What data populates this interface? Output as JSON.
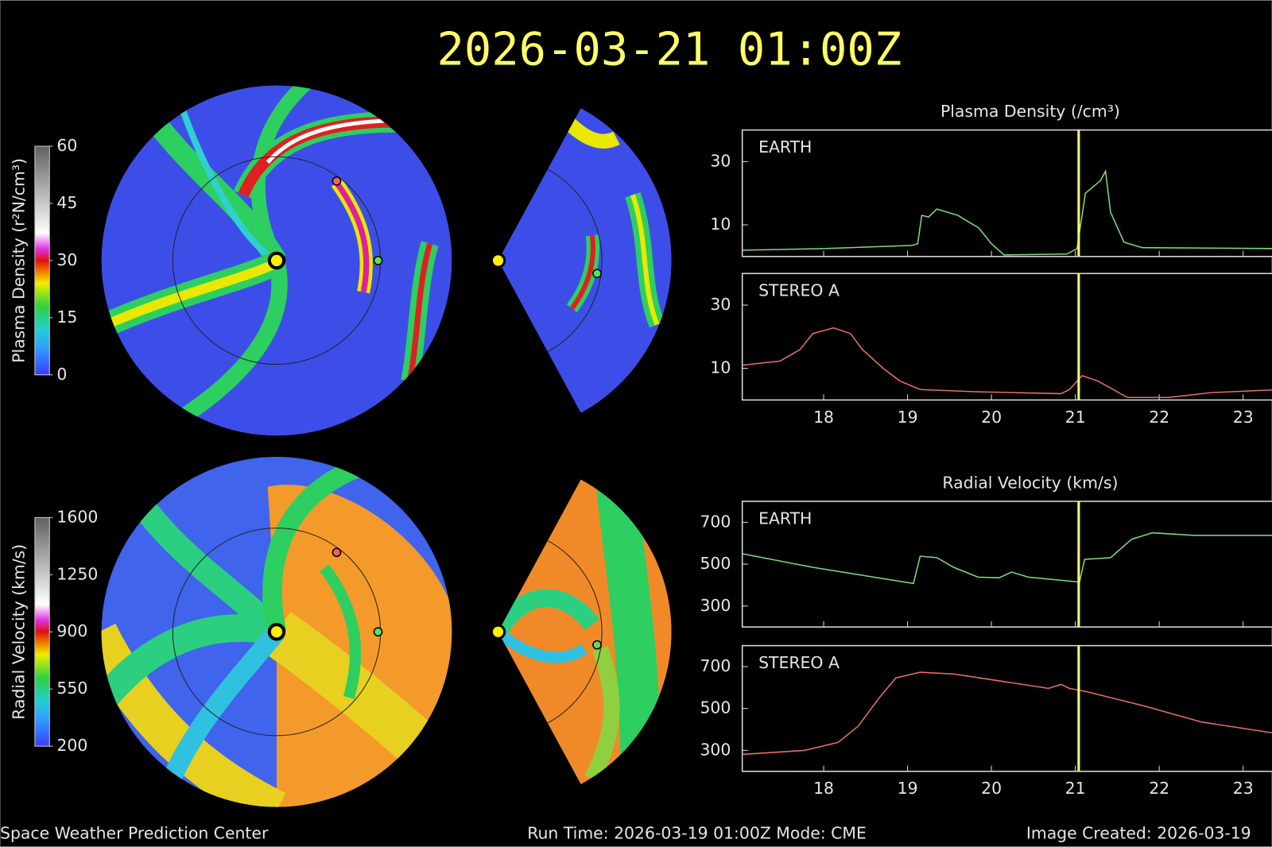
{
  "title": "2026-03-21 01:00Z",
  "footer": {
    "left": "Space Weather Prediction Center",
    "center": "Run Time: 2026-03-19 01:00Z  Mode: CME",
    "right": "Image Created: 2026-03-19"
  },
  "colorbars": [
    {
      "label": "Plasma Density (r²N/cm³)",
      "lim": [
        0,
        60
      ],
      "ticks": [
        0,
        15,
        30,
        45,
        60
      ]
    },
    {
      "label": "Radial Velocity (km/s)",
      "lim": [
        200,
        1600
      ],
      "ticks": [
        200,
        550,
        900,
        1250,
        1600
      ]
    }
  ],
  "chart_data": [
    {
      "type": "line",
      "title": "Plasma Density (/cm³)",
      "xlim": [
        17.03,
        23.46
      ],
      "ylim": [
        0,
        40
      ],
      "yticks": [
        10,
        30
      ],
      "vline": 21.04,
      "series": [
        {
          "name": "EARTH",
          "color": "#7ddc7d",
          "x": [
            17.03,
            18.0,
            19.05,
            19.12,
            19.17,
            19.25,
            19.35,
            19.6,
            19.85,
            20.0,
            20.15,
            20.9,
            21.02,
            21.12,
            21.3,
            21.36,
            21.42,
            21.58,
            21.8,
            23.46
          ],
          "values": [
            2,
            2.5,
            3.5,
            4,
            13,
            12.5,
            15,
            13,
            9,
            4,
            0.5,
            0.8,
            2.5,
            20,
            24,
            27,
            14,
            4.5,
            2.8,
            2.5
          ]
        }
      ]
    },
    {
      "type": "line",
      "xlim": [
        17.03,
        23.46
      ],
      "ylim": [
        0,
        40
      ],
      "yticks": [
        10,
        30
      ],
      "xticks": [
        18,
        19,
        20,
        21,
        22,
        23
      ],
      "vline": 21.04,
      "series": [
        {
          "name": "STEREO A",
          "color": "#e8706a",
          "x": [
            17.03,
            17.48,
            17.72,
            17.87,
            18.12,
            18.32,
            18.46,
            18.71,
            18.91,
            19.15,
            19.84,
            20.83,
            20.93,
            21.08,
            21.27,
            21.62,
            22.11,
            22.61,
            23.46
          ],
          "values": [
            11,
            12.3,
            16,
            21,
            22.8,
            21,
            16,
            10,
            6,
            3.3,
            2.6,
            2,
            3.3,
            7.7,
            6,
            0.8,
            0.8,
            2.3,
            3.3
          ]
        }
      ]
    },
    {
      "type": "line",
      "title": "Radial Velocity (km/s)",
      "xlim": [
        17.03,
        23.46
      ],
      "ylim": [
        200,
        800
      ],
      "yticks": [
        300,
        500,
        700
      ],
      "vline": 21.04,
      "series": [
        {
          "name": "EARTH",
          "color": "#7ddc7d",
          "x": [
            17.03,
            17.87,
            18.96,
            19.07,
            19.15,
            19.35,
            19.55,
            19.84,
            20.09,
            20.24,
            20.44,
            20.93,
            21.05,
            21.11,
            21.42,
            21.67,
            21.92,
            22.41,
            23.46
          ],
          "values": [
            550,
            485,
            415,
            408,
            538,
            531,
            485,
            438,
            435,
            462,
            438,
            419,
            415,
            523,
            531,
            619,
            650,
            638,
            638
          ]
        }
      ]
    },
    {
      "type": "line",
      "xlim": [
        17.03,
        23.46
      ],
      "ylim": [
        200,
        800
      ],
      "yticks": [
        300,
        500,
        700
      ],
      "xticks": [
        18,
        19,
        20,
        21,
        22,
        23
      ],
      "vline": 21.04,
      "series": [
        {
          "name": "STEREO A",
          "color": "#e8706a",
          "x": [
            17.03,
            17.77,
            18.17,
            18.41,
            18.66,
            18.86,
            19.15,
            19.55,
            20.04,
            20.68,
            20.83,
            20.93,
            21.13,
            21.82,
            22.51,
            23.46
          ],
          "values": [
            281,
            300,
            338,
            415,
            550,
            646,
            673,
            665,
            635,
            596,
            615,
            596,
            581,
            512,
            435,
            377
          ]
        }
      ]
    }
  ]
}
